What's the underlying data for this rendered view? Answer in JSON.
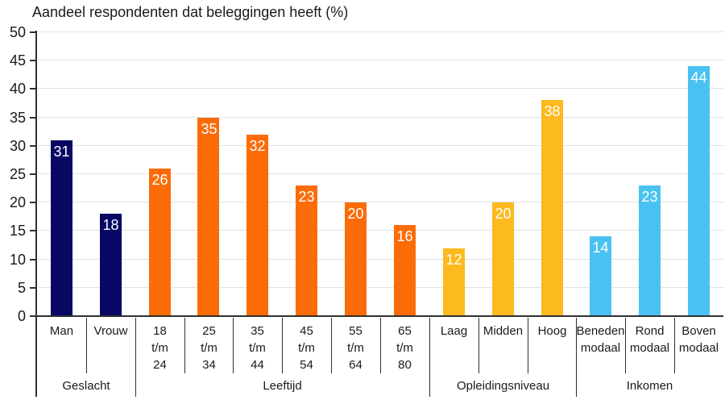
{
  "title": "Aandeel respondenten dat beleggingen heeft (%)",
  "colors": {
    "geslacht": "#080864",
    "leeftijd": "#fb6c09",
    "opleidingsniveau": "#fcba1e",
    "inkomen": "#4ac2f1",
    "gridline": "#e2e2e2",
    "axis": "#303030",
    "value_label": "#ffffff"
  },
  "chart_data": {
    "type": "bar",
    "title": "Aandeel respondenten dat beleggingen heeft (%)",
    "xlabel": "",
    "ylabel": "",
    "ylim": [
      0,
      50
    ],
    "ytick_step": 5,
    "y_ticks": [
      0,
      5,
      10,
      15,
      20,
      25,
      30,
      35,
      40,
      45,
      50
    ],
    "grid": true,
    "legend": false,
    "value_label_position": "inside-top",
    "groups": [
      {
        "label": "Geslacht",
        "color": "#080864",
        "bars": [
          {
            "category": "Man",
            "category_lines": [
              "Man"
            ],
            "value": 31
          },
          {
            "category": "Vrouw",
            "category_lines": [
              "Vrouw"
            ],
            "value": 18
          }
        ]
      },
      {
        "label": "Leeftijd",
        "color": "#fb6c09",
        "bars": [
          {
            "category": "18 t/m 24",
            "category_lines": [
              "18",
              "t/m",
              "24"
            ],
            "value": 26
          },
          {
            "category": "25 t/m 34",
            "category_lines": [
              "25",
              "t/m",
              "34"
            ],
            "value": 35
          },
          {
            "category": "35 t/m 44",
            "category_lines": [
              "35",
              "t/m",
              "44"
            ],
            "value": 32
          },
          {
            "category": "45 t/m 54",
            "category_lines": [
              "45",
              "t/m",
              "54"
            ],
            "value": 23
          },
          {
            "category": "55 t/m 64",
            "category_lines": [
              "55",
              "t/m",
              "64"
            ],
            "value": 20
          },
          {
            "category": "65 t/m 80",
            "category_lines": [
              "65",
              "t/m",
              "80"
            ],
            "value": 16
          }
        ]
      },
      {
        "label": "Opleidingsniveau",
        "color": "#fcba1e",
        "bars": [
          {
            "category": "Laag",
            "category_lines": [
              "Laag"
            ],
            "value": 12
          },
          {
            "category": "Midden",
            "category_lines": [
              "Midden"
            ],
            "value": 20
          },
          {
            "category": "Hoog",
            "category_lines": [
              "Hoog"
            ],
            "value": 38
          }
        ]
      },
      {
        "label": "Inkomen",
        "color": "#4ac2f1",
        "bars": [
          {
            "category": "Beneden modaal",
            "category_lines": [
              "Beneden",
              "modaal"
            ],
            "value": 14
          },
          {
            "category": "Rond modaal",
            "category_lines": [
              "Rond",
              "modaal"
            ],
            "value": 23
          },
          {
            "category": "Boven modaal",
            "category_lines": [
              "Boven",
              "modaal"
            ],
            "value": 44
          }
        ]
      }
    ]
  }
}
